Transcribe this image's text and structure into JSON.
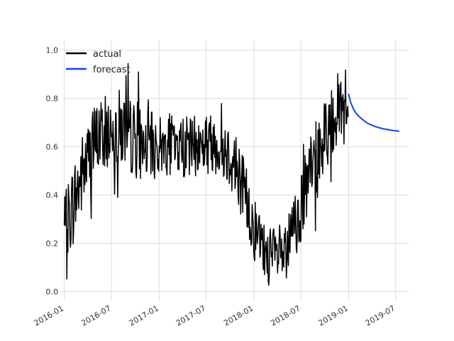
{
  "chart_data": {
    "type": "line",
    "title": "",
    "xlabel": "",
    "ylabel": "",
    "ylim": [
      -0.04,
      1.04
    ],
    "xlim": [
      "2015-12-25",
      "2019-08-20"
    ],
    "grid": true,
    "legend": {
      "placement": "top-left",
      "entries": [
        "actual",
        "forecast"
      ]
    },
    "x_ticks": [
      "2016-01",
      "2016-07",
      "2017-01",
      "2017-07",
      "2018-01",
      "2018-07",
      "2019-01",
      "2019-07"
    ],
    "y_ticks": [
      "0.0",
      "0.2",
      "0.4",
      "0.6",
      "0.8",
      "1.0"
    ],
    "series": [
      {
        "name": "actual",
        "color": "#000000",
        "x": [
          "2016-01-01",
          "2016-01-15",
          "2016-02-01",
          "2016-02-15",
          "2016-03-01",
          "2016-03-15",
          "2016-04-01",
          "2016-04-15",
          "2016-05-01",
          "2016-05-15",
          "2016-06-01",
          "2016-06-15",
          "2016-07-01",
          "2016-07-15",
          "2016-08-01",
          "2016-08-15",
          "2016-09-01",
          "2016-09-15",
          "2016-10-01",
          "2016-10-15",
          "2016-11-01",
          "2016-11-15",
          "2016-12-01",
          "2016-12-15",
          "2017-01-01",
          "2017-01-15",
          "2017-02-01",
          "2017-02-15",
          "2017-03-01",
          "2017-03-15",
          "2017-04-01",
          "2017-04-15",
          "2017-05-01",
          "2017-05-15",
          "2017-06-01",
          "2017-06-15",
          "2017-07-01",
          "2017-07-15",
          "2017-08-01",
          "2017-08-15",
          "2017-09-01",
          "2017-09-15",
          "2017-10-01",
          "2017-10-15",
          "2017-11-01",
          "2017-11-15",
          "2017-12-01",
          "2017-12-15",
          "2018-01-01",
          "2018-01-15",
          "2018-02-01",
          "2018-02-15",
          "2018-03-01",
          "2018-03-15",
          "2018-04-01",
          "2018-04-15",
          "2018-05-01",
          "2018-05-15",
          "2018-06-01",
          "2018-06-15",
          "2018-07-01",
          "2018-07-15",
          "2018-08-01",
          "2018-08-15",
          "2018-09-01",
          "2018-09-15",
          "2018-10-01",
          "2018-10-15",
          "2018-11-01",
          "2018-11-15",
          "2018-12-01",
          "2018-12-15",
          "2018-12-31"
        ],
        "values": [
          0.25,
          0.3,
          0.35,
          0.4,
          0.45,
          0.5,
          0.55,
          0.58,
          0.62,
          0.65,
          0.65,
          0.66,
          0.67,
          0.68,
          0.68,
          0.67,
          0.65,
          0.64,
          0.63,
          0.62,
          0.61,
          0.61,
          0.6,
          0.6,
          0.6,
          0.61,
          0.61,
          0.61,
          0.6,
          0.6,
          0.6,
          0.6,
          0.6,
          0.6,
          0.6,
          0.61,
          0.61,
          0.62,
          0.62,
          0.61,
          0.6,
          0.59,
          0.57,
          0.54,
          0.5,
          0.45,
          0.39,
          0.33,
          0.27,
          0.22,
          0.18,
          0.16,
          0.15,
          0.14,
          0.14,
          0.15,
          0.17,
          0.2,
          0.25,
          0.3,
          0.35,
          0.4,
          0.45,
          0.51,
          0.56,
          0.6,
          0.64,
          0.68,
          0.72,
          0.75,
          0.78,
          0.8,
          0.82
        ],
        "noise_amplitude": [
          0.08,
          0.1,
          0.11,
          0.11,
          0.11,
          0.11,
          0.1,
          0.1,
          0.1,
          0.1,
          0.1,
          0.1,
          0.1,
          0.1,
          0.1,
          0.1,
          0.1,
          0.1,
          0.1,
          0.1,
          0.09,
          0.09,
          0.09,
          0.09,
          0.08,
          0.08,
          0.08,
          0.08,
          0.08,
          0.08,
          0.08,
          0.08,
          0.08,
          0.08,
          0.08,
          0.08,
          0.08,
          0.08,
          0.08,
          0.08,
          0.08,
          0.08,
          0.09,
          0.09,
          0.09,
          0.09,
          0.09,
          0.09,
          0.09,
          0.09,
          0.08,
          0.08,
          0.08,
          0.08,
          0.08,
          0.08,
          0.08,
          0.08,
          0.09,
          0.1,
          0.1,
          0.1,
          0.1,
          0.1,
          0.1,
          0.1,
          0.1,
          0.1,
          0.1,
          0.09,
          0.09,
          0.09,
          0.09
        ]
      },
      {
        "name": "forecast",
        "color": "#1844e8",
        "x": [
          "2018-12-31",
          "2019-01-10",
          "2019-01-20",
          "2019-02-01",
          "2019-02-15",
          "2019-03-01",
          "2019-03-15",
          "2019-04-01",
          "2019-04-15",
          "2019-05-01",
          "2019-05-15",
          "2019-06-01",
          "2019-06-15",
          "2019-07-01",
          "2019-07-15"
        ],
        "values": [
          0.82,
          0.78,
          0.755,
          0.735,
          0.72,
          0.708,
          0.697,
          0.689,
          0.683,
          0.678,
          0.674,
          0.671,
          0.668,
          0.666,
          0.664
        ]
      }
    ]
  }
}
